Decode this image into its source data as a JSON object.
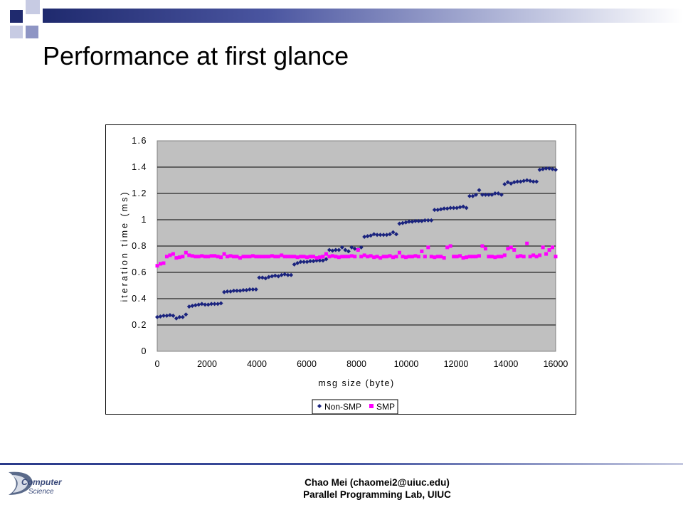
{
  "slide": {
    "title": "Performance at first glance",
    "footer_line1": "Chao Mei (chaomei2@uiuc.edu)",
    "footer_line2": "Parallel Programming Lab, UIUC",
    "logo_text_1": "Computer",
    "logo_text_2": "Science"
  },
  "colors": {
    "bar_dark": "#1f2a6e",
    "plot_bg": "#c0c0c0",
    "non_smp": "#1a237e",
    "smp": "#ff00ff"
  },
  "chart_data": {
    "type": "scatter",
    "xlabel": "msg size (byte)",
    "ylabel": "iteration time (ms)",
    "xlim": [
      0,
      16000
    ],
    "ylim": [
      0,
      1.6
    ],
    "x_ticks": [
      "0",
      "2000",
      "4000",
      "6000",
      "8000",
      "10000",
      "12000",
      "14000",
      "16000"
    ],
    "y_ticks": [
      "0",
      "0.2",
      "0.4",
      "0.6",
      "0.8",
      "1",
      "1.2",
      "1.4",
      "1.6"
    ],
    "grid": "horizontal",
    "legend_position": "bottom",
    "series": [
      {
        "name": "Non-SMP",
        "marker": "diamond",
        "color": "#1a237e",
        "points": [
          [
            0,
            0.26
          ],
          [
            128,
            0.265
          ],
          [
            256,
            0.27
          ],
          [
            384,
            0.27
          ],
          [
            512,
            0.275
          ],
          [
            640,
            0.27
          ],
          [
            768,
            0.25
          ],
          [
            896,
            0.26
          ],
          [
            1024,
            0.26
          ],
          [
            1152,
            0.28
          ],
          [
            1280,
            0.34
          ],
          [
            1408,
            0.345
          ],
          [
            1536,
            0.35
          ],
          [
            1664,
            0.355
          ],
          [
            1792,
            0.36
          ],
          [
            1920,
            0.355
          ],
          [
            2048,
            0.355
          ],
          [
            2176,
            0.36
          ],
          [
            2304,
            0.36
          ],
          [
            2432,
            0.36
          ],
          [
            2560,
            0.365
          ],
          [
            2688,
            0.45
          ],
          [
            2816,
            0.455
          ],
          [
            2944,
            0.455
          ],
          [
            3072,
            0.46
          ],
          [
            3200,
            0.46
          ],
          [
            3328,
            0.46
          ],
          [
            3456,
            0.465
          ],
          [
            3584,
            0.465
          ],
          [
            3712,
            0.47
          ],
          [
            3840,
            0.47
          ],
          [
            3968,
            0.47
          ],
          [
            4096,
            0.56
          ],
          [
            4224,
            0.56
          ],
          [
            4352,
            0.555
          ],
          [
            4480,
            0.565
          ],
          [
            4608,
            0.57
          ],
          [
            4736,
            0.575
          ],
          [
            4864,
            0.57
          ],
          [
            4992,
            0.58
          ],
          [
            5120,
            0.585
          ],
          [
            5248,
            0.58
          ],
          [
            5376,
            0.58
          ],
          [
            5504,
            0.66
          ],
          [
            5632,
            0.67
          ],
          [
            5760,
            0.68
          ],
          [
            5888,
            0.68
          ],
          [
            6016,
            0.68
          ],
          [
            6144,
            0.685
          ],
          [
            6272,
            0.685
          ],
          [
            6400,
            0.69
          ],
          [
            6528,
            0.69
          ],
          [
            6656,
            0.69
          ],
          [
            6784,
            0.7
          ],
          [
            6912,
            0.77
          ],
          [
            7040,
            0.765
          ],
          [
            7168,
            0.77
          ],
          [
            7296,
            0.77
          ],
          [
            7424,
            0.79
          ],
          [
            7552,
            0.77
          ],
          [
            7680,
            0.76
          ],
          [
            7808,
            0.79
          ],
          [
            7936,
            0.78
          ],
          [
            8064,
            0.775
          ],
          [
            8192,
            0.79
          ],
          [
            8320,
            0.87
          ],
          [
            8448,
            0.875
          ],
          [
            8576,
            0.88
          ],
          [
            8704,
            0.89
          ],
          [
            8832,
            0.885
          ],
          [
            8960,
            0.885
          ],
          [
            9088,
            0.885
          ],
          [
            9216,
            0.885
          ],
          [
            9344,
            0.89
          ],
          [
            9472,
            0.905
          ],
          [
            9600,
            0.89
          ],
          [
            9728,
            0.97
          ],
          [
            9856,
            0.975
          ],
          [
            9984,
            0.98
          ],
          [
            10112,
            0.985
          ],
          [
            10240,
            0.985
          ],
          [
            10368,
            0.99
          ],
          [
            10496,
            0.99
          ],
          [
            10624,
            0.99
          ],
          [
            10752,
            0.995
          ],
          [
            10880,
            0.995
          ],
          [
            11008,
            0.995
          ],
          [
            11136,
            1.075
          ],
          [
            11264,
            1.075
          ],
          [
            11392,
            1.08
          ],
          [
            11520,
            1.085
          ],
          [
            11648,
            1.085
          ],
          [
            11776,
            1.09
          ],
          [
            11904,
            1.09
          ],
          [
            12032,
            1.09
          ],
          [
            12160,
            1.095
          ],
          [
            12288,
            1.1
          ],
          [
            12416,
            1.09
          ],
          [
            12544,
            1.18
          ],
          [
            12672,
            1.18
          ],
          [
            12800,
            1.19
          ],
          [
            12928,
            1.225
          ],
          [
            13056,
            1.19
          ],
          [
            13184,
            1.19
          ],
          [
            13312,
            1.19
          ],
          [
            13440,
            1.19
          ],
          [
            13568,
            1.2
          ],
          [
            13696,
            1.2
          ],
          [
            13824,
            1.19
          ],
          [
            13952,
            1.27
          ],
          [
            14080,
            1.285
          ],
          [
            14208,
            1.275
          ],
          [
            14336,
            1.285
          ],
          [
            14464,
            1.29
          ],
          [
            14592,
            1.29
          ],
          [
            14720,
            1.295
          ],
          [
            14848,
            1.3
          ],
          [
            14976,
            1.295
          ],
          [
            15104,
            1.29
          ],
          [
            15232,
            1.29
          ],
          [
            15360,
            1.38
          ],
          [
            15488,
            1.385
          ],
          [
            15616,
            1.39
          ],
          [
            15744,
            1.39
          ],
          [
            15872,
            1.385
          ],
          [
            16000,
            1.38
          ]
        ]
      },
      {
        "name": "SMP",
        "marker": "square",
        "color": "#ff00ff",
        "points": [
          [
            0,
            0.65
          ],
          [
            128,
            0.665
          ],
          [
            256,
            0.67
          ],
          [
            384,
            0.72
          ],
          [
            512,
            0.73
          ],
          [
            640,
            0.74
          ],
          [
            768,
            0.71
          ],
          [
            896,
            0.715
          ],
          [
            1024,
            0.72
          ],
          [
            1152,
            0.75
          ],
          [
            1280,
            0.73
          ],
          [
            1408,
            0.725
          ],
          [
            1536,
            0.72
          ],
          [
            1664,
            0.72
          ],
          [
            1792,
            0.725
          ],
          [
            1920,
            0.72
          ],
          [
            2048,
            0.72
          ],
          [
            2176,
            0.725
          ],
          [
            2304,
            0.725
          ],
          [
            2432,
            0.72
          ],
          [
            2560,
            0.715
          ],
          [
            2688,
            0.74
          ],
          [
            2816,
            0.72
          ],
          [
            2944,
            0.725
          ],
          [
            3072,
            0.72
          ],
          [
            3200,
            0.72
          ],
          [
            3328,
            0.71
          ],
          [
            3456,
            0.72
          ],
          [
            3584,
            0.72
          ],
          [
            3712,
            0.72
          ],
          [
            3840,
            0.725
          ],
          [
            3968,
            0.72
          ],
          [
            4096,
            0.72
          ],
          [
            4224,
            0.72
          ],
          [
            4352,
            0.72
          ],
          [
            4480,
            0.72
          ],
          [
            4608,
            0.725
          ],
          [
            4736,
            0.72
          ],
          [
            4864,
            0.72
          ],
          [
            4992,
            0.73
          ],
          [
            5120,
            0.72
          ],
          [
            5248,
            0.72
          ],
          [
            5376,
            0.72
          ],
          [
            5504,
            0.72
          ],
          [
            5632,
            0.715
          ],
          [
            5760,
            0.72
          ],
          [
            5888,
            0.72
          ],
          [
            6016,
            0.715
          ],
          [
            6144,
            0.72
          ],
          [
            6272,
            0.72
          ],
          [
            6400,
            0.71
          ],
          [
            6528,
            0.715
          ],
          [
            6656,
            0.72
          ],
          [
            6784,
            0.74
          ],
          [
            6912,
            0.72
          ],
          [
            7040,
            0.725
          ],
          [
            7168,
            0.72
          ],
          [
            7296,
            0.715
          ],
          [
            7424,
            0.72
          ],
          [
            7552,
            0.72
          ],
          [
            7680,
            0.72
          ],
          [
            7808,
            0.725
          ],
          [
            7936,
            0.72
          ],
          [
            8064,
            0.77
          ],
          [
            8192,
            0.72
          ],
          [
            8320,
            0.73
          ],
          [
            8448,
            0.72
          ],
          [
            8576,
            0.725
          ],
          [
            8704,
            0.715
          ],
          [
            8832,
            0.72
          ],
          [
            8960,
            0.71
          ],
          [
            9088,
            0.72
          ],
          [
            9216,
            0.72
          ],
          [
            9344,
            0.725
          ],
          [
            9472,
            0.715
          ],
          [
            9600,
            0.72
          ],
          [
            9728,
            0.75
          ],
          [
            9856,
            0.72
          ],
          [
            9984,
            0.715
          ],
          [
            10112,
            0.72
          ],
          [
            10240,
            0.72
          ],
          [
            10368,
            0.725
          ],
          [
            10496,
            0.72
          ],
          [
            10624,
            0.76
          ],
          [
            10752,
            0.72
          ],
          [
            10880,
            0.79
          ],
          [
            11008,
            0.72
          ],
          [
            11136,
            0.715
          ],
          [
            11264,
            0.72
          ],
          [
            11392,
            0.72
          ],
          [
            11520,
            0.71
          ],
          [
            11648,
            0.79
          ],
          [
            11776,
            0.8
          ],
          [
            11904,
            0.72
          ],
          [
            12032,
            0.72
          ],
          [
            12160,
            0.725
          ],
          [
            12288,
            0.71
          ],
          [
            12416,
            0.715
          ],
          [
            12544,
            0.72
          ],
          [
            12672,
            0.72
          ],
          [
            12800,
            0.72
          ],
          [
            12928,
            0.725
          ],
          [
            13056,
            0.8
          ],
          [
            13184,
            0.78
          ],
          [
            13312,
            0.72
          ],
          [
            13440,
            0.72
          ],
          [
            13568,
            0.715
          ],
          [
            13696,
            0.72
          ],
          [
            13824,
            0.72
          ],
          [
            13952,
            0.73
          ],
          [
            14080,
            0.78
          ],
          [
            14208,
            0.79
          ],
          [
            14336,
            0.77
          ],
          [
            14464,
            0.72
          ],
          [
            14592,
            0.725
          ],
          [
            14720,
            0.72
          ],
          [
            14848,
            0.82
          ],
          [
            14976,
            0.72
          ],
          [
            15104,
            0.73
          ],
          [
            15232,
            0.72
          ],
          [
            15360,
            0.73
          ],
          [
            15488,
            0.79
          ],
          [
            15616,
            0.74
          ],
          [
            15744,
            0.77
          ],
          [
            15872,
            0.79
          ],
          [
            16000,
            0.72
          ]
        ]
      }
    ]
  }
}
